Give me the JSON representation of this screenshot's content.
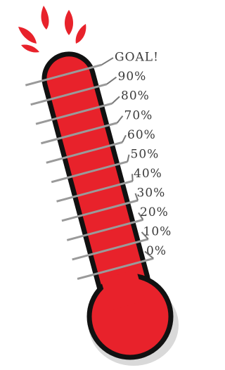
{
  "labels": [
    "GOAL!",
    "90%",
    "80%",
    "70%",
    "60%",
    "50%",
    "40%",
    "30%",
    "20%",
    "10%",
    "0%"
  ]
}
